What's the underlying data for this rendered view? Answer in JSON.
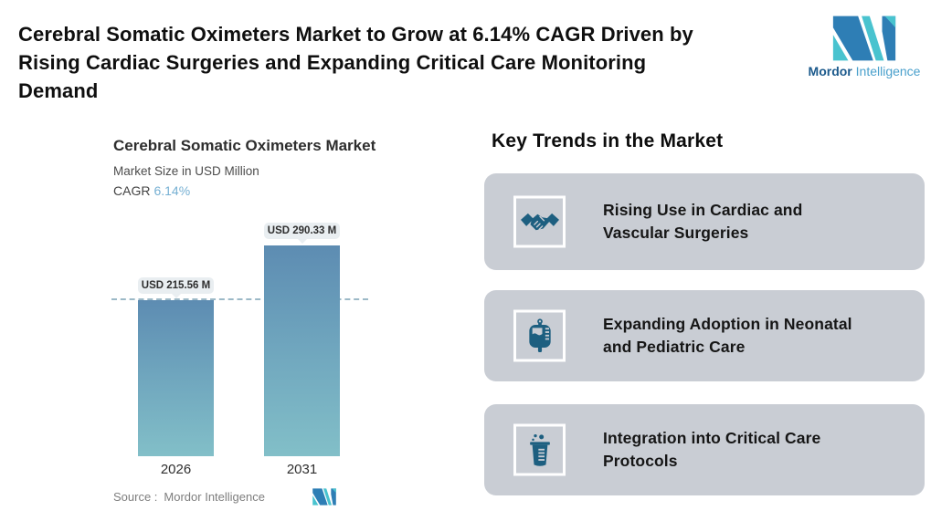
{
  "header": {
    "title": "Cerebral Somatic Oximeters Market to Grow at 6.14% CAGR Driven by\nRising Cardiac Surgeries and Expanding Critical Care Monitoring\nDemand",
    "brand_bold": "Mordor",
    "brand_light": "Intelligence"
  },
  "chart": {
    "title": "Cerebral Somatic Oximeters Market",
    "subtitle": "Market Size in USD Million",
    "cagr_label": "CAGR",
    "cagr_value": "6.14%",
    "source_prefix": "Source :",
    "source_value": "Mordor Intelligence"
  },
  "chart_data": {
    "type": "bar",
    "title": "Cerebral Somatic Oximeters Market",
    "ylabel": "Market Size in USD Million",
    "cagr_pct": 6.14,
    "categories": [
      "2026",
      "2031"
    ],
    "values": [
      215.56,
      290.33
    ],
    "bar_labels": [
      "USD 215.56 M",
      "USD 290.33 M"
    ],
    "reference_line_value": 215.56,
    "ylim": [
      0,
      327
    ],
    "grid": false,
    "axes_hidden": true,
    "bar_color_top": "#5d8cb2",
    "bar_color_bottom": "#82bfc8"
  },
  "trends": {
    "heading": "Key Trends in the Market",
    "items": [
      {
        "icon": "handshake-icon",
        "text": "Rising Use in Cardiac and\nVascular Surgeries"
      },
      {
        "icon": "iv-bag-icon",
        "text": "Expanding Adoption in Neonatal\nand Pediatric Care"
      },
      {
        "icon": "beaker-icon",
        "text": "Integration into Critical Care\nProtocols"
      }
    ]
  },
  "colors": {
    "logo_blue": "#2e7eb5",
    "logo_teal": "#49c3cf",
    "card_bg": "#c9cdd4",
    "icon_fill": "#1d5f80",
    "dashed_line": "#9cb9c7",
    "pill_bg": "#e9eef1",
    "cagr_accent": "#76b0d3"
  }
}
